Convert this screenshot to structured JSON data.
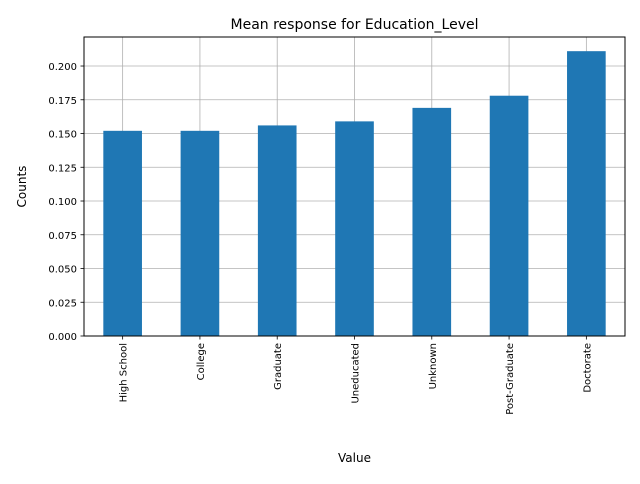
{
  "chart_data": {
    "type": "bar",
    "title": "Mean response for Education_Level",
    "xlabel": "Value",
    "ylabel": "Counts",
    "categories": [
      "High School",
      "College",
      "Graduate",
      "Uneducated",
      "Unknown",
      "Post-Graduate",
      "Doctorate"
    ],
    "values": [
      0.152,
      0.152,
      0.156,
      0.159,
      0.169,
      0.178,
      0.211
    ],
    "ylim": [
      0,
      0.2215
    ],
    "yticks": [
      0.0,
      0.025,
      0.05,
      0.075,
      0.1,
      0.125,
      0.15,
      0.175,
      0.2
    ],
    "ytick_labels": [
      "0.000",
      "0.025",
      "0.050",
      "0.075",
      "0.100",
      "0.125",
      "0.150",
      "0.175",
      "0.200"
    ],
    "grid": true,
    "bar_color": "#1f77b4",
    "grid_color": "#b0b0b0"
  }
}
